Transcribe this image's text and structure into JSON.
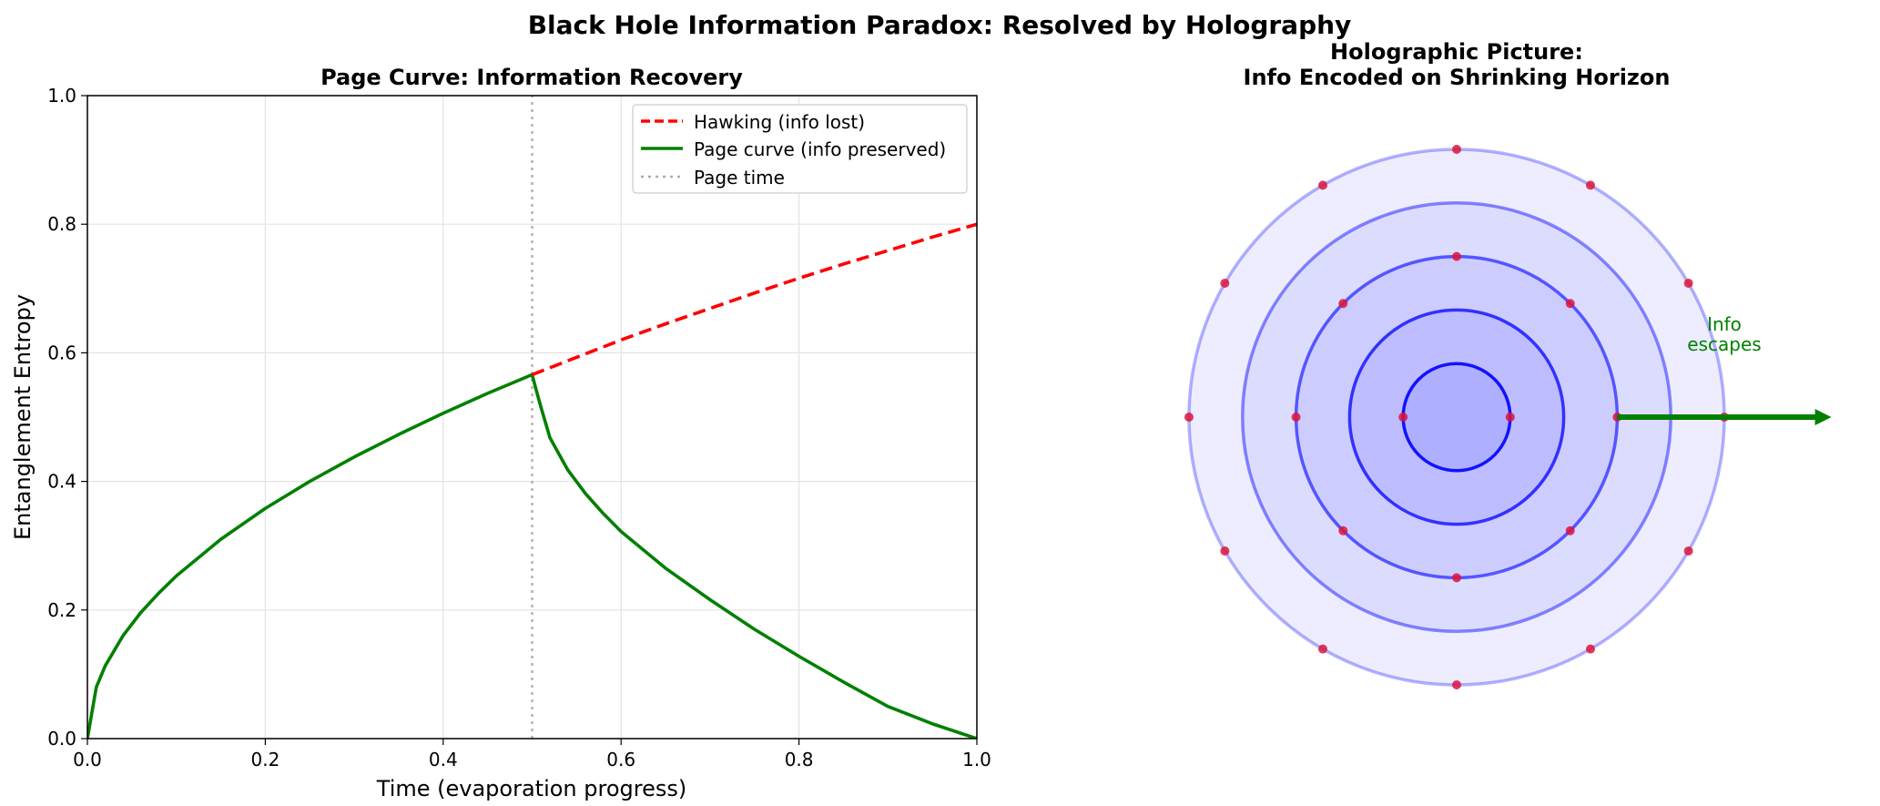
{
  "figure": {
    "suptitle": "Black Hole Information Paradox: Resolved by Holography"
  },
  "chart_data": [
    {
      "type": "line",
      "title": "Page Curve: Information Recovery",
      "xlabel": "Time (evaporation progress)",
      "ylabel": "Entanglement Entropy",
      "xlim": [
        0.0,
        1.0
      ],
      "ylim": [
        0.0,
        1.0
      ],
      "xticks": [
        "0.0",
        "0.2",
        "0.4",
        "0.6",
        "0.8",
        "1.0"
      ],
      "yticks": [
        "0.0",
        "0.2",
        "0.4",
        "0.6",
        "0.8",
        "1.0"
      ],
      "grid": true,
      "legend_position": "upper right",
      "page_time": 0.5,
      "series": [
        {
          "name": "Hawking (info lost)",
          "color": "#ff0000",
          "style": "dashed",
          "x": [
            0.5,
            0.55,
            0.6,
            0.65,
            0.7,
            0.75,
            0.8,
            0.85,
            0.9,
            0.95,
            1.0
          ],
          "y": [
            0.566,
            0.593,
            0.62,
            0.645,
            0.669,
            0.693,
            0.716,
            0.738,
            0.759,
            0.78,
            0.8
          ]
        },
        {
          "name": "Page curve (info preserved)",
          "color": "#008000",
          "style": "solid",
          "x": [
            0.0,
            0.01,
            0.02,
            0.04,
            0.06,
            0.08,
            0.1,
            0.15,
            0.2,
            0.25,
            0.3,
            0.35,
            0.4,
            0.45,
            0.5,
            0.505,
            0.51,
            0.52,
            0.54,
            0.56,
            0.58,
            0.6,
            0.65,
            0.7,
            0.75,
            0.8,
            0.85,
            0.9,
            0.95,
            1.0
          ],
          "y": [
            0.0,
            0.08,
            0.113,
            0.16,
            0.196,
            0.226,
            0.253,
            0.31,
            0.358,
            0.4,
            0.438,
            0.473,
            0.506,
            0.537,
            0.566,
            0.54,
            0.515,
            0.468,
            0.418,
            0.381,
            0.35,
            0.322,
            0.265,
            0.216,
            0.17,
            0.128,
            0.088,
            0.05,
            0.023,
            0.0
          ]
        },
        {
          "name": "Page time",
          "color": "#aaaaaa",
          "style": "dotted",
          "x": [
            0.5,
            0.5
          ],
          "y": [
            0.0,
            1.0
          ]
        }
      ]
    },
    {
      "type": "diagram",
      "title_lines": [
        "Holographic Picture:",
        "Info Encoded on Shrinking Horizon"
      ],
      "xlim": [
        -1.2,
        1.2
      ],
      "ylim": [
        -1.2,
        1.2
      ],
      "center": [
        0.0,
        0.0
      ],
      "horizon_radii": [
        1.0,
        0.8,
        0.6,
        0.4,
        0.2
      ],
      "fill_color": "#0000ff",
      "point_color": "#dc143c",
      "points_per_horizon": [
        12,
        0,
        8,
        0,
        2
      ],
      "annotation": {
        "text": [
          "Info",
          "escapes"
        ],
        "color": "#008000",
        "x": 1.0,
        "y": 0.3,
        "arrow_from": [
          0.6,
          0.0
        ],
        "arrow_to": [
          1.4,
          0.0
        ]
      }
    }
  ]
}
